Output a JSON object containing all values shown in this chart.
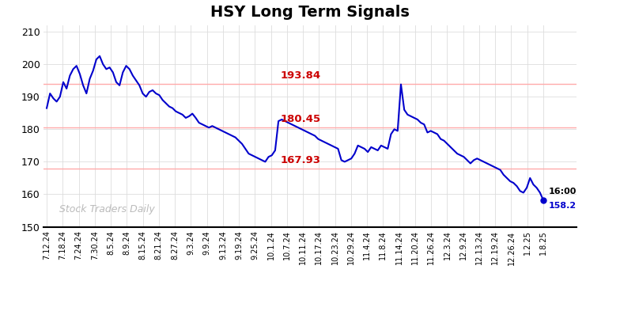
{
  "title": "HSY Long Term Signals",
  "title_fontsize": 14,
  "title_fontweight": "bold",
  "background_color": "#ffffff",
  "plot_bg_color": "#ffffff",
  "line_color": "#0000cc",
  "line_width": 1.5,
  "hlines": [
    193.84,
    180.45,
    167.93
  ],
  "hline_color": "#ffaaaa",
  "hline_labels": [
    "193.84",
    "180.45",
    "167.93"
  ],
  "hline_label_color": "#cc0000",
  "last_price": 158.2,
  "watermark": "Stock Traders Daily",
  "watermark_color": "#bbbbbb",
  "grid_color": "#dddddd",
  "ylim": [
    150,
    212
  ],
  "yticks": [
    150,
    160,
    170,
    180,
    190,
    200,
    210
  ],
  "x_labels": [
    "7.12.24",
    "7.18.24",
    "7.24.24",
    "7.30.24",
    "8.5.24",
    "8.9.24",
    "8.15.24",
    "8.21.24",
    "8.27.24",
    "9.3.24",
    "9.9.24",
    "9.13.24",
    "9.19.24",
    "9.25.24",
    "10.1.24",
    "10.7.24",
    "10.11.24",
    "10.17.24",
    "10.23.24",
    "10.29.24",
    "11.4.24",
    "11.8.24",
    "11.14.24",
    "11.20.24",
    "11.26.24",
    "12.3.24",
    "12.9.24",
    "12.13.24",
    "12.19.24",
    "12.26.24",
    "1.2.25",
    "1.8.25"
  ],
  "prices": [
    186.5,
    191.0,
    189.5,
    188.5,
    190.0,
    194.5,
    192.5,
    196.5,
    198.5,
    199.5,
    197.0,
    193.5,
    191.0,
    195.5,
    198.0,
    201.5,
    202.5,
    200.0,
    198.5,
    199.0,
    197.5,
    194.5,
    193.5,
    197.5,
    199.5,
    198.5,
    196.5,
    195.0,
    193.5,
    191.0,
    190.0,
    191.5,
    192.0,
    191.0,
    190.5,
    189.0,
    188.0,
    187.0,
    186.5,
    185.5,
    185.0,
    184.5,
    183.5,
    184.0,
    184.8,
    183.5,
    182.0,
    181.5,
    181.0,
    180.5,
    181.0,
    180.5,
    180.0,
    179.5,
    179.0,
    178.5,
    178.0,
    177.5,
    176.5,
    175.5,
    174.0,
    172.5,
    172.0,
    171.5,
    171.0,
    170.5,
    170.0,
    171.5,
    172.0,
    173.5,
    182.5,
    183.0,
    182.5,
    182.0,
    181.5,
    181.0,
    180.5,
    180.0,
    179.5,
    179.0,
    178.5,
    178.0,
    177.0,
    176.5,
    176.0,
    175.5,
    175.0,
    174.5,
    174.0,
    170.5,
    170.0,
    170.5,
    171.0,
    172.5,
    175.0,
    174.5,
    174.0,
    173.0,
    174.5,
    174.0,
    173.5,
    175.0,
    174.5,
    174.0,
    178.5,
    180.0,
    179.5,
    193.8,
    186.0,
    184.5,
    184.0,
    183.5,
    183.0,
    182.0,
    181.5,
    179.0,
    179.5,
    179.0,
    178.5,
    177.0,
    176.5,
    175.5,
    174.5,
    173.5,
    172.5,
    172.0,
    171.5,
    170.5,
    169.5,
    170.5,
    171.0,
    170.5,
    170.0,
    169.5,
    169.0,
    168.5,
    168.0,
    167.5,
    166.0,
    165.0,
    164.0,
    163.5,
    162.5,
    161.0,
    160.5,
    162.0,
    165.0,
    163.0,
    162.0,
    160.5,
    158.2
  ]
}
